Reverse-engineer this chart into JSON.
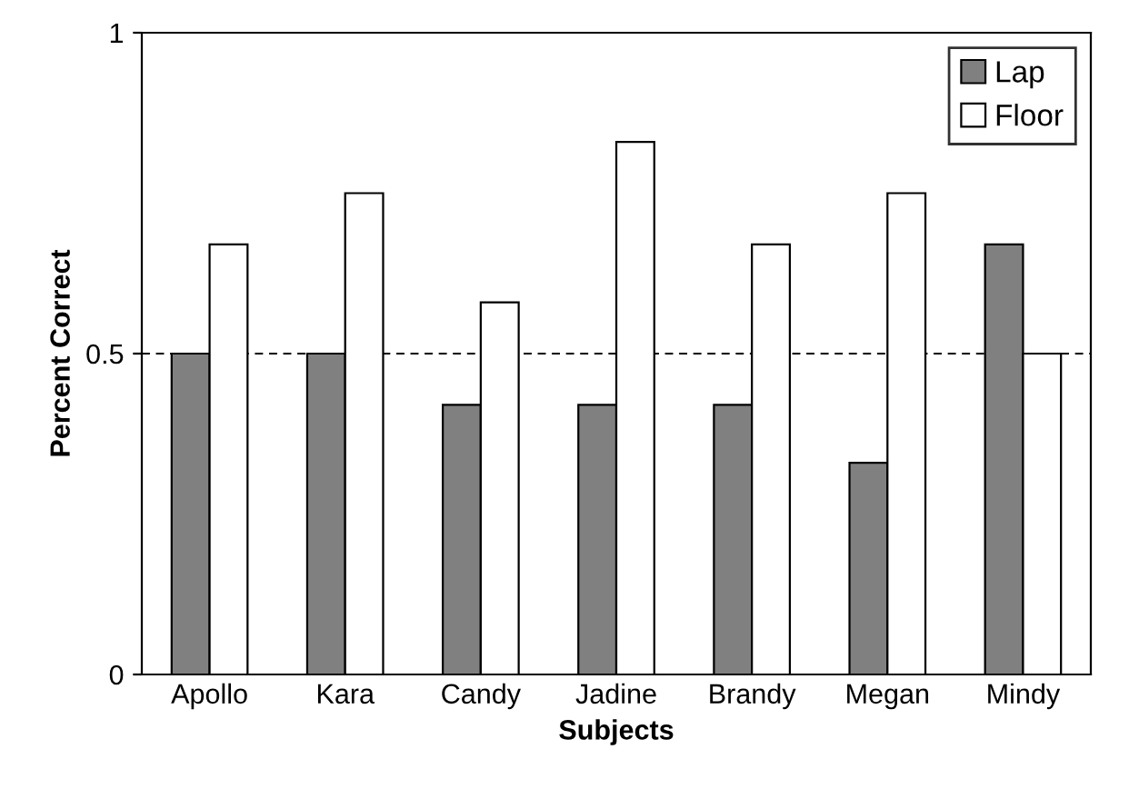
{
  "chart_data": {
    "type": "bar",
    "categories": [
      "Apollo",
      "Kara",
      "Candy",
      "Jadine",
      "Brandy",
      "Megan",
      "Mindy"
    ],
    "series": [
      {
        "name": "Lap",
        "color": "#808080",
        "values": [
          0.5,
          0.5,
          0.42,
          0.42,
          0.42,
          0.33,
          0.67
        ]
      },
      {
        "name": "Floor",
        "color": "#ffffff",
        "values": [
          0.67,
          0.75,
          0.58,
          0.83,
          0.67,
          0.75,
          0.5
        ]
      }
    ],
    "xlabel": "Subjects",
    "ylabel": "Percent Correct",
    "ylim": [
      0,
      1
    ],
    "yticks": [
      0,
      0.5,
      1
    ],
    "ref_lines": [
      {
        "axis": "y",
        "value": 0.5,
        "line_style": "dashed",
        "color": "#000000"
      }
    ],
    "legend": "top right",
    "grid": false
  }
}
